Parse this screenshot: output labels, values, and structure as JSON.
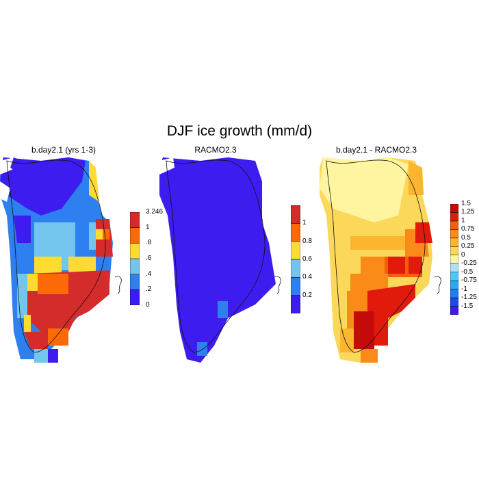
{
  "title": "DJF ice growth (mm/d)",
  "panels": [
    {
      "id": "model",
      "title": "b.day2.1 (yrs 1-3)",
      "colorbar": {
        "colors": [
          "#3d1cf0",
          "#2e7ff0",
          "#74c5ee",
          "#fcdc33",
          "#fc6a07",
          "#d42b2b"
        ],
        "labels": [
          "0",
          ".2",
          ".4",
          ".6",
          ".8",
          "1",
          "3.246"
        ]
      }
    },
    {
      "id": "obs",
      "title": "RACMO2.3",
      "colorbar": {
        "colors": [
          "#3d1cf0",
          "#2e7ff0",
          "#74c5ee",
          "#fcdc33",
          "#fc6a07",
          "#d42b2b"
        ],
        "labels": [
          "0.2",
          "0.4",
          "0.6",
          "0.8",
          "1"
        ]
      }
    },
    {
      "id": "diff",
      "title": "b.day2.1 - RACMO2.3",
      "colorbar": {
        "colors": [
          "#3d1cf0",
          "#2148f0",
          "#1f7ff0",
          "#2ea6f0",
          "#4fc7f5",
          "#b1dff5",
          "#fff5a0",
          "#fbd75a",
          "#fbb630",
          "#fb8b18",
          "#f55f0c",
          "#e21a0c",
          "#c40a0a"
        ],
        "labels": [
          "-1.5",
          "-1.25",
          "-1",
          "-0.75",
          "-0.5",
          "-0.25",
          "0",
          "0.25",
          "0.5",
          "0.75",
          "1",
          "1.25",
          "1.5"
        ]
      }
    }
  ]
}
